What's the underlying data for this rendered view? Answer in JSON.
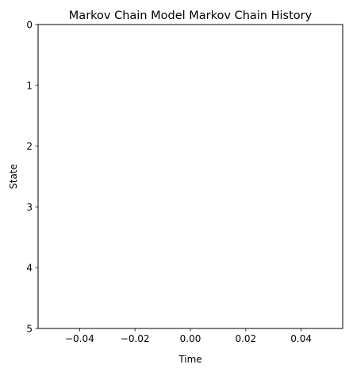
{
  "chart_data": {
    "type": "line",
    "title": "Markov Chain Model Markov Chain History",
    "xlabel": "Time",
    "ylabel": "State",
    "xlim": [
      -0.055,
      0.055
    ],
    "ylim": [
      5,
      0
    ],
    "y_inverted": true,
    "x_ticks": [
      -0.04,
      -0.02,
      0.0,
      0.02,
      0.04
    ],
    "x_tick_labels": [
      "−0.04",
      "−0.02",
      "0.00",
      "0.02",
      "0.04"
    ],
    "y_ticks": [
      0,
      1,
      2,
      3,
      4,
      5
    ],
    "y_tick_labels": [
      "0",
      "1",
      "2",
      "3",
      "4",
      "5"
    ],
    "grid": false,
    "legend": "none",
    "series": [
      {
        "x": [],
        "y": []
      }
    ]
  }
}
